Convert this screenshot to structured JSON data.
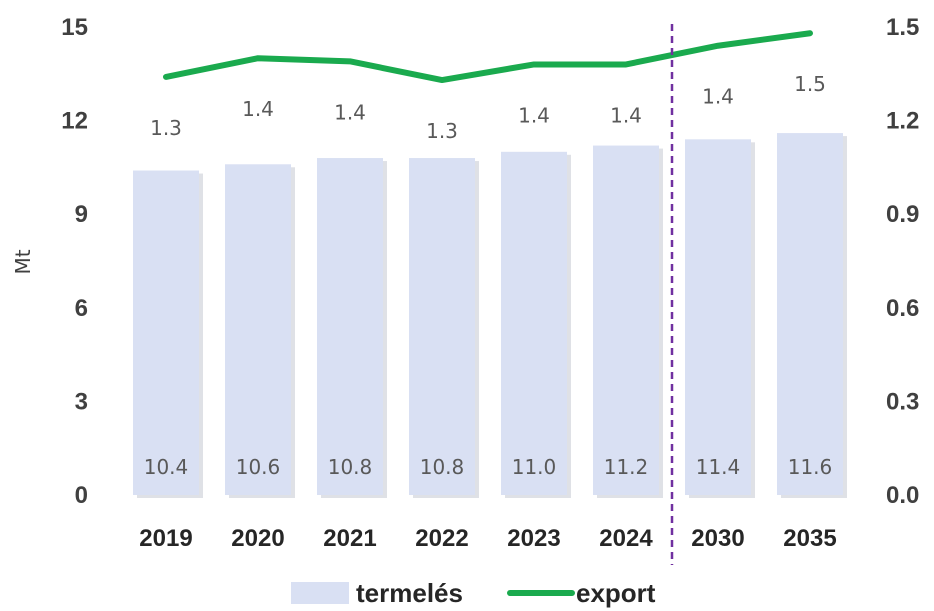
{
  "chart_data": {
    "type": "bar",
    "categories": [
      "2019",
      "2020",
      "2021",
      "2022",
      "2023",
      "2024",
      "2030",
      "2035"
    ],
    "series": [
      {
        "name": "termelés",
        "kind": "bar",
        "axis": "left",
        "color": "#d9e0f3",
        "values": [
          10.4,
          10.6,
          10.8,
          10.8,
          11.0,
          11.2,
          11.4,
          11.6
        ],
        "labels": [
          "10.4",
          "10.6",
          "10.8",
          "10.8",
          "11.0",
          "11.2",
          "11.4",
          "11.6"
        ]
      },
      {
        "name": "export",
        "kind": "line",
        "axis": "right",
        "color": "#1aaa4e",
        "values": [
          1.34,
          1.4,
          1.39,
          1.33,
          1.38,
          1.38,
          1.44,
          1.48
        ],
        "labels": [
          "1.3",
          "1.4",
          "1.4",
          "1.3",
          "1.4",
          "1.4",
          "1.4",
          "1.5"
        ]
      }
    ],
    "ylabel": "Mt",
    "ylim": [
      0,
      15
    ],
    "y2lim": [
      0,
      1.5
    ],
    "yticks": [
      "0",
      "3",
      "6",
      "9",
      "12",
      "15"
    ],
    "y2ticks": [
      "0.0",
      "0.3",
      "0.6",
      "0.9",
      "1.2",
      "1.5"
    ],
    "divider": {
      "after_category": "2024",
      "color": "#7030a0",
      "style": "dashed"
    },
    "grid": false,
    "legend": "bottom"
  }
}
